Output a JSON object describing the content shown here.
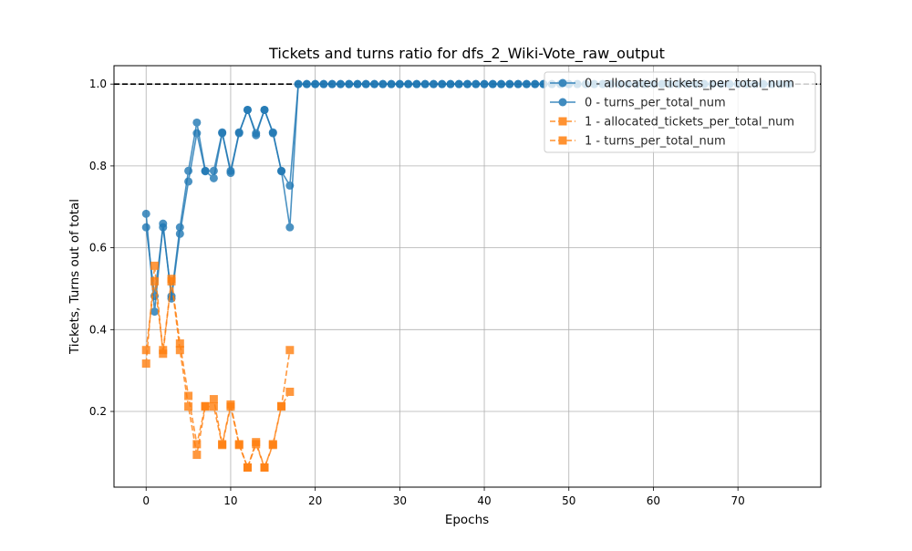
{
  "chart_data": {
    "type": "line",
    "title": "Tickets and turns ratio for dfs_2_Wiki-Vote_raw_output",
    "xlabel": "Epochs",
    "ylabel": "Tickets, Turns out of total",
    "xlim": [
      -3.8,
      79.8
    ],
    "ylim": [
      0.015,
      1.045
    ],
    "xticks": [
      0,
      10,
      20,
      30,
      40,
      50,
      60,
      70
    ],
    "yticks": [
      0.2,
      0.4,
      0.6,
      0.8,
      1.0
    ],
    "ytick_labels": [
      "0.2",
      "0.4",
      "0.6",
      "0.8",
      "1.0"
    ],
    "grid": true,
    "legend_position": "top-right",
    "reference_line": {
      "y": 1.0,
      "style": "dashed",
      "color": "#000000"
    },
    "series": [
      {
        "name": "0 - allocated_tickets_per_total_num",
        "color": "#1f77b4",
        "marker": "circle",
        "linestyle": "solid",
        "x": [
          0,
          1,
          2,
          3,
          4,
          5,
          6,
          7,
          8,
          9,
          10,
          11,
          12,
          13,
          14,
          15,
          16,
          17,
          18,
          19,
          20,
          21,
          22,
          23,
          24,
          25,
          26,
          27,
          28,
          29,
          30,
          31,
          32,
          33,
          34,
          35,
          36,
          37,
          38,
          39,
          40,
          41,
          42,
          43,
          44,
          45,
          46,
          47,
          48,
          49,
          50,
          51,
          52,
          53,
          54,
          55,
          56,
          57,
          58,
          59,
          60,
          61,
          62,
          63,
          64,
          65,
          66,
          67,
          68,
          69,
          70,
          71,
          72,
          73,
          74,
          75,
          76
        ],
        "y": [
          0.683,
          0.444,
          0.659,
          0.476,
          0.634,
          0.762,
          0.88,
          0.787,
          0.77,
          0.88,
          0.783,
          0.88,
          0.937,
          0.88,
          0.937,
          0.88,
          0.787,
          0.752,
          1.0,
          1.0,
          1.0,
          1.0,
          1.0,
          1.0,
          1.0,
          1.0,
          1.0,
          1.0,
          1.0,
          1.0,
          1.0,
          1.0,
          1.0,
          1.0,
          1.0,
          1.0,
          1.0,
          1.0,
          1.0,
          1.0,
          1.0,
          1.0,
          1.0,
          1.0,
          1.0,
          1.0,
          1.0,
          1.0,
          1.0,
          1.0,
          1.0,
          1.0,
          1.0,
          1.0,
          1.0,
          1.0,
          1.0,
          1.0,
          1.0,
          1.0,
          1.0,
          1.0,
          1.0,
          1.0,
          1.0,
          1.0,
          1.0,
          1.0,
          1.0,
          1.0,
          1.0,
          1.0,
          1.0,
          1.0,
          1.0,
          1.0,
          1.0
        ]
      },
      {
        "name": "0 - turns_per_total_num",
        "color": "#1f77b4",
        "marker": "circle",
        "linestyle": "solid",
        "x": [
          0,
          1,
          2,
          3,
          4,
          5,
          6,
          7,
          8,
          9,
          10,
          11,
          12,
          13,
          14,
          15,
          16,
          17,
          18,
          19,
          20,
          21,
          22,
          23,
          24,
          25,
          26,
          27,
          28,
          29,
          30,
          31,
          32,
          33,
          34,
          35,
          36,
          37,
          38,
          39,
          40,
          41,
          42,
          43,
          44,
          45,
          46,
          47,
          48,
          49,
          50,
          51,
          52,
          53,
          54,
          55,
          56,
          57,
          58,
          59,
          60,
          61,
          62,
          63,
          64,
          65,
          66,
          67,
          68,
          69,
          70,
          71,
          72,
          73,
          74,
          75,
          76
        ],
        "y": [
          0.65,
          0.482,
          0.65,
          0.482,
          0.65,
          0.788,
          0.906,
          0.788,
          0.788,
          0.882,
          0.788,
          0.882,
          0.937,
          0.875,
          0.937,
          0.882,
          0.788,
          0.65,
          1.0,
          1.0,
          1.0,
          1.0,
          1.0,
          1.0,
          1.0,
          1.0,
          1.0,
          1.0,
          1.0,
          1.0,
          1.0,
          1.0,
          1.0,
          1.0,
          1.0,
          1.0,
          1.0,
          1.0,
          1.0,
          1.0,
          1.0,
          1.0,
          1.0,
          1.0,
          1.0,
          1.0,
          1.0,
          1.0,
          1.0,
          1.0,
          1.0,
          1.0,
          1.0,
          1.0,
          1.0,
          1.0,
          1.0,
          1.0,
          1.0,
          1.0,
          1.0,
          1.0,
          1.0,
          1.0,
          1.0,
          1.0,
          1.0,
          1.0,
          1.0,
          1.0,
          1.0,
          1.0,
          1.0,
          1.0,
          1.0,
          1.0,
          1.0
        ]
      },
      {
        "name": "1 - allocated_tickets_per_total_num",
        "color": "#ff7f0e",
        "marker": "square",
        "linestyle": "dashed",
        "x": [
          0,
          1,
          2,
          3,
          4,
          5,
          6,
          7,
          8,
          9,
          10,
          11,
          12,
          13,
          14,
          15,
          16,
          17
        ],
        "y": [
          0.317,
          0.556,
          0.341,
          0.524,
          0.366,
          0.238,
          0.12,
          0.213,
          0.23,
          0.12,
          0.217,
          0.12,
          0.063,
          0.12,
          0.063,
          0.12,
          0.213,
          0.248
        ]
      },
      {
        "name": "1 - turns_per_total_num",
        "color": "#ff7f0e",
        "marker": "square",
        "linestyle": "dashed",
        "x": [
          0,
          1,
          2,
          3,
          4,
          5,
          6,
          7,
          8,
          9,
          10,
          11,
          12,
          13,
          14,
          15,
          16,
          17
        ],
        "y": [
          0.35,
          0.518,
          0.35,
          0.518,
          0.35,
          0.212,
          0.094,
          0.212,
          0.212,
          0.118,
          0.212,
          0.118,
          0.063,
          0.125,
          0.063,
          0.118,
          0.212,
          0.35
        ]
      }
    ]
  }
}
